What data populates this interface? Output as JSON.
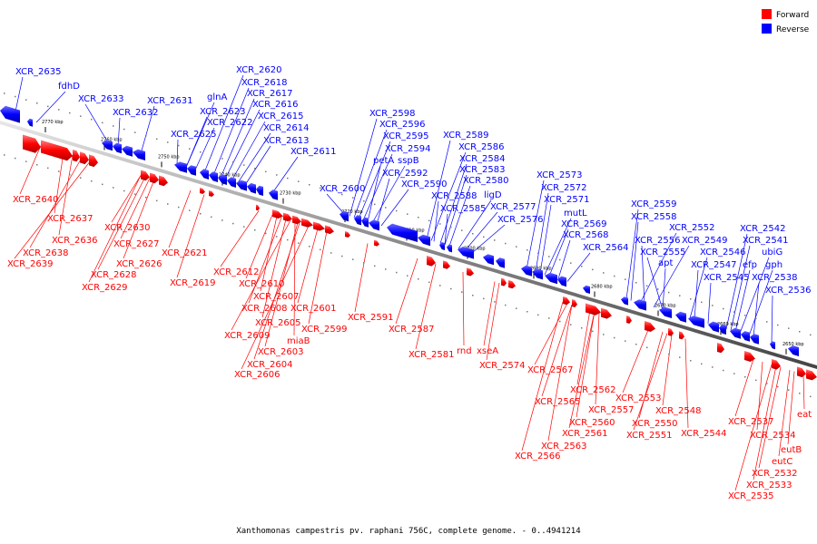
{
  "caption": "Xanthomonas campestris pv. raphani 756C, complete genome. - 0..4941214",
  "legend": [
    {
      "label": "Forward",
      "color": "#ff0000"
    },
    {
      "label": "Reverse",
      "color": "#0000ff"
    }
  ],
  "ticks": [
    "2770 kbp",
    "2760 kbp",
    "2750 kbp",
    "2740 kbp",
    "2730 kbp",
    "2720 kbp",
    "2710 kbp",
    "2700 kbp",
    "2690 kbp",
    "2680 kbp",
    "2670 kbp",
    "2660 kbp",
    "2650 kbp"
  ],
  "reverse_genes": [
    "XCR_2635",
    "fdhD",
    "XCR_2633",
    "XCR_2632",
    "XCR_2631",
    "XCR_2620",
    "XCR_2618",
    "XCR_2617",
    "glnA",
    "XCR_2623",
    "XCR_2616",
    "XCR_2622",
    "XCR_2615",
    "XCR_2614",
    "XCR_2625",
    "XCR_2613",
    "XCR_2611",
    "XCR_2598",
    "XCR_2596",
    "XCR_2595",
    "XCR_2594",
    "petA",
    "sspB",
    "XCR_2592",
    "XCR_2590",
    "XCR_2600",
    "XCR_2589",
    "XCR_2586",
    "XCR_2584",
    "XCR_2583",
    "XCR_2580",
    "XCR_2588",
    "ligD",
    "XCR_2585",
    "XCR_2577",
    "XCR_2576",
    "XCR_2573",
    "XCR_2572",
    "XCR_2571",
    "mutL",
    "XCR_2569",
    "XCR_2568",
    "XCR_2564",
    "XCR_2559",
    "XCR_2558",
    "XCR_2552",
    "XCR_2556",
    "XCR_2549",
    "XCR_2555",
    "apt",
    "XCR_2546",
    "XCR_2547",
    "XCR_2545",
    "XCR_2542",
    "XCR_2541",
    "efp",
    "ubiG",
    "gph",
    "XCR_2538",
    "XCR_2536"
  ],
  "forward_genes": [
    "XCR_2640",
    "XCR_2637",
    "XCR_2636",
    "XCR_2638",
    "XCR_2639",
    "XCR_2630",
    "XCR_2627",
    "XCR_2626",
    "XCR_2628",
    "XCR_2629",
    "XCR_2621",
    "XCR_2619",
    "XCR_2612",
    "XCR_2610",
    "XCR_2607",
    "XCR_2608",
    "XCR_2605",
    "XCR_2609",
    "miaB",
    "XCR_2603",
    "XCR_2604",
    "XCR_2606",
    "XCR_2601",
    "XCR_2599",
    "XCR_2591",
    "XCR_2587",
    "XCR_2581",
    "rnd",
    "xseA",
    "XCR_2574",
    "XCR_2567",
    "XCR_2565",
    "XCR_2562",
    "XCR_2557",
    "XCR_2560",
    "XCR_2561",
    "XCR_2563",
    "XCR_2566",
    "XCR_2553",
    "XCR_2550",
    "XCR_2551",
    "XCR_2548",
    "XCR_2544",
    "XCR_2537",
    "XCR_2534",
    "eat",
    "eutB",
    "eutC",
    "XCR_2532",
    "XCR_2533",
    "XCR_2535"
  ]
}
